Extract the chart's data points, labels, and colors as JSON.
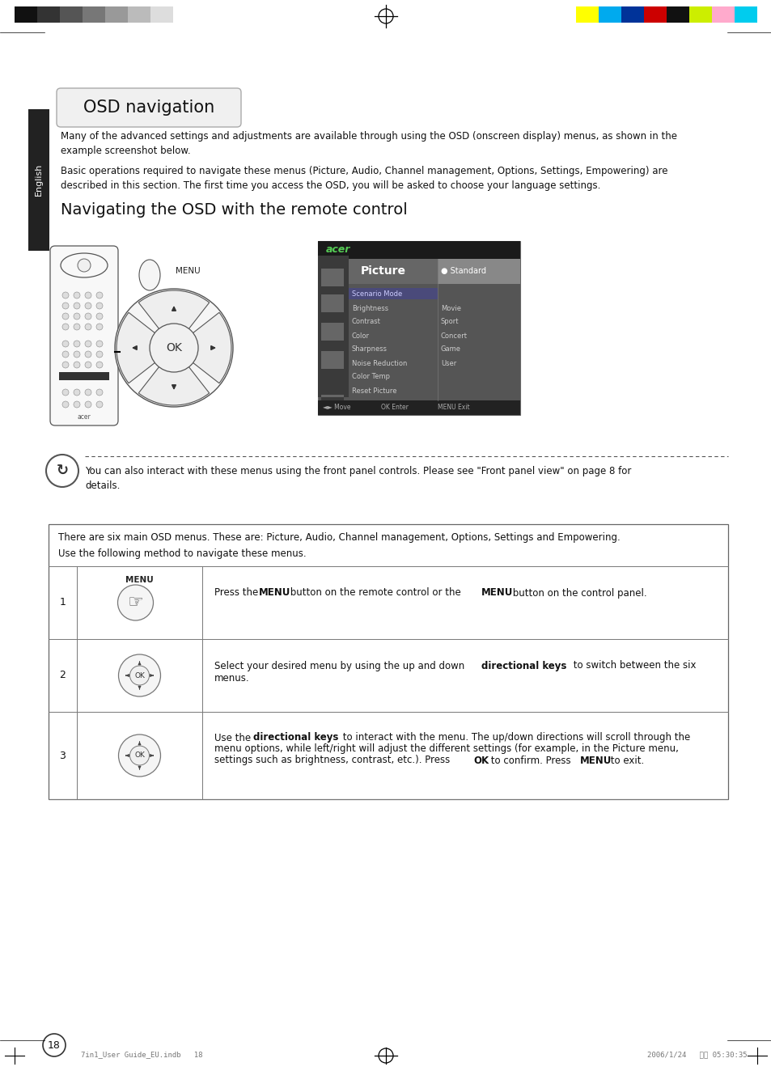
{
  "page_bg": "#ffffff",
  "title_box_text": "OSD navigation",
  "title_box_bg": "#f0f0f0",
  "title_box_border": "#aaaaaa",
  "section_heading": "Navigating the OSD with the remote control",
  "para1": "Many of the advanced settings and adjustments are available through using the OSD (onscreen display) menus, as shown in the\nexample screenshot below.",
  "para2": "Basic operations required to navigate these menus (Picture, Audio, Channel management, Options, Settings, Empowering) are\ndescribed in this section. The first time you access the OSD, you will be asked to choose your language settings.",
  "note_text": "You can also interact with these menus using the front panel controls. Please see \"Front panel view\" on page 8 for\ndetails.",
  "table_header_line1": "There are six main OSD menus. These are: Picture, Audio, Channel management, Options, Settings and Empowering.",
  "table_header_line2": "Use the following method to navigate these menus.",
  "row1_num": "1",
  "row1_label": "MENU",
  "row1_text_pre": "Press the ",
  "row1_bold1": "MENU",
  "row1_text_mid": " button on the remote control or the ",
  "row1_bold2": "MENU",
  "row1_text_post": " button on the control panel.",
  "row2_num": "2",
  "row2_text_pre": "Select your desired menu by using the up and down ",
  "row2_bold": "directional keys",
  "row2_text_post": " to switch between the six\nmenus.",
  "row3_num": "3",
  "row3_text_pre": "Use the ",
  "row3_bold1": "directional keys",
  "row3_text_mid1": " to interact with the menu. The up/down directions will scroll through the\nmenu options, while left/right will adjust the different settings (for example, in the Picture menu,\nsettings such as brightness, contrast, etc.). Press ",
  "row3_bold2": "OK",
  "row3_text_mid2": " to confirm. Press ",
  "row3_bold3": "MENU",
  "row3_text_post": " to exit.",
  "sidebar_color": "#222222",
  "sidebar_text": "English",
  "page_number": "18",
  "top_bar_colors_left": [
    "#111111",
    "#333333",
    "#555555",
    "#777777",
    "#999999",
    "#bbbbbb",
    "#dddddd",
    "#ffffff"
  ],
  "top_bar_colors_right": [
    "#ffff00",
    "#00aaee",
    "#003399",
    "#cc0000",
    "#111111",
    "#ccee00",
    "#ffaacc",
    "#00ccee"
  ],
  "osd_header_text": "acer",
  "osd_title": "Picture",
  "osd_items_left": [
    "Scenario Mode",
    "Brightness",
    "Contrast",
    "Color",
    "Sharpness",
    "Noise Reduction",
    "Color Temp",
    "Reset Picture"
  ],
  "osd_items_right": [
    "Standard",
    "Movie",
    "Sport",
    "Concert",
    "Game",
    "User"
  ],
  "footer_left": "7in1_User Guide_EU.indb   18",
  "footer_right": "2006/1/24   上华 05:30:35"
}
